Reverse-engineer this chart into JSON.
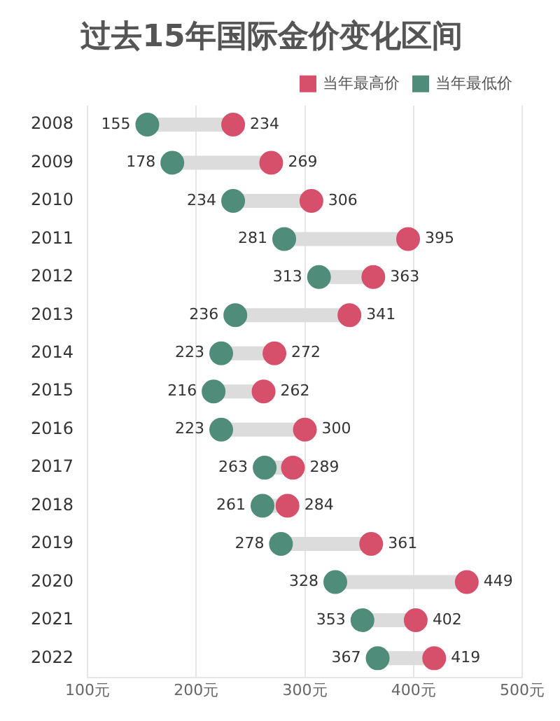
{
  "chart_data": {
    "type": "scatter",
    "orientation": "horizontal",
    "title": "过去15年国际金价变化区间",
    "categories": [
      "2008",
      "2009",
      "2010",
      "2011",
      "2012",
      "2013",
      "2014",
      "2015",
      "2016",
      "2017",
      "2018",
      "2019",
      "2020",
      "2021",
      "2022"
    ],
    "series": [
      {
        "name": "当年最高价",
        "color": "#d6506b",
        "values": [
          234,
          269,
          306,
          395,
          363,
          341,
          272,
          262,
          300,
          289,
          284,
          361,
          449,
          402,
          419
        ]
      },
      {
        "name": "当年最低价",
        "color": "#4f8c79",
        "values": [
          155,
          178,
          234,
          281,
          313,
          236,
          223,
          216,
          223,
          263,
          261,
          278,
          328,
          353,
          367
        ]
      }
    ],
    "xlim": [
      100,
      500
    ],
    "xticks": [
      {
        "value": 100,
        "label": "100元"
      },
      {
        "value": 200,
        "label": "200元"
      },
      {
        "value": 300,
        "label": "300元"
      },
      {
        "value": 400,
        "label": "400元"
      },
      {
        "value": 500,
        "label": "500元"
      }
    ],
    "grid": "x",
    "legend": "top right",
    "marker": "circle",
    "data_labels": true
  }
}
